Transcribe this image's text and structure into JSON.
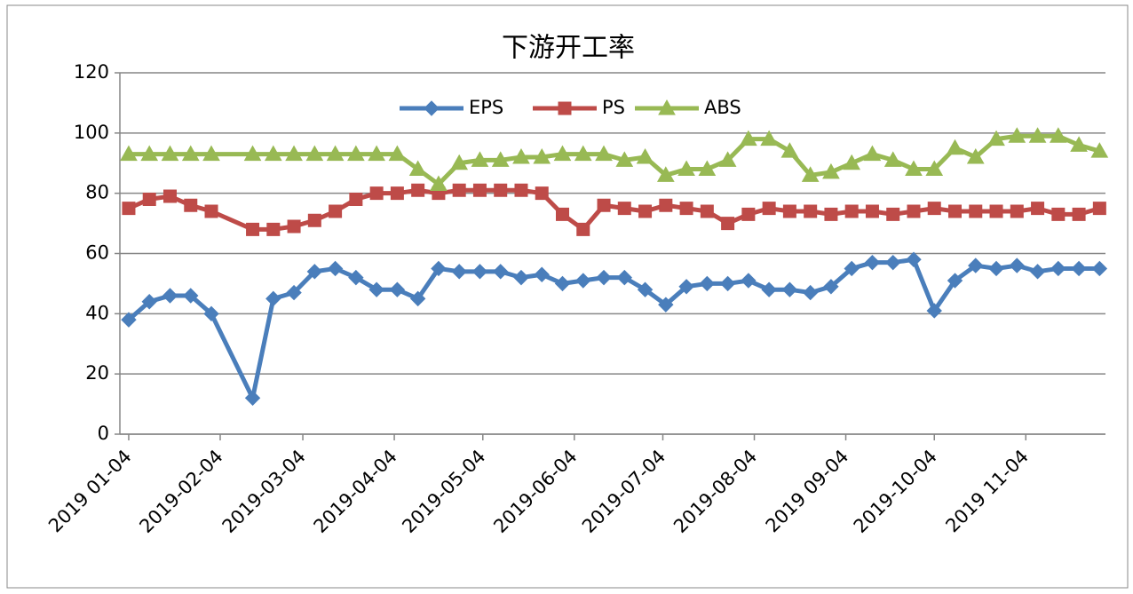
{
  "chart_data": {
    "type": "line",
    "title": "下游开工率",
    "x": [
      "2019-01-04",
      "2019-01-11",
      "2019-01-18",
      "2019-01-25",
      "2019-02-01",
      "2019-02-15",
      "2019-02-22",
      "2019-03-01",
      "2019-03-08",
      "2019-03-15",
      "2019-03-22",
      "2019-03-29",
      "2019-04-05",
      "2019-04-12",
      "2019-04-19",
      "2019-04-26",
      "2019-05-03",
      "2019-05-10",
      "2019-05-17",
      "2019-05-24",
      "2019-05-31",
      "2019-06-07",
      "2019-06-14",
      "2019-06-21",
      "2019-06-28",
      "2019-07-05",
      "2019-07-12",
      "2019-07-19",
      "2019-07-26",
      "2019-08-02",
      "2019-08-09",
      "2019-08-16",
      "2019-08-23",
      "2019-08-30",
      "2019-09-06",
      "2019-09-13",
      "2019-09-20",
      "2019-09-27",
      "2019-10-04",
      "2019-10-11",
      "2019-10-18",
      "2019-10-25",
      "2019-11-01",
      "2019-11-08",
      "2019-11-15",
      "2019-11-22",
      "2019-11-29"
    ],
    "series": [
      {
        "name": "EPS",
        "color": "#4a7ebb",
        "marker": "diamond",
        "values": [
          38,
          44,
          46,
          46,
          40,
          12,
          45,
          47,
          54,
          55,
          52,
          48,
          48,
          45,
          55,
          54,
          54,
          54,
          52,
          53,
          50,
          51,
          52,
          52,
          48,
          43,
          49,
          50,
          50,
          51,
          48,
          48,
          47,
          49,
          55,
          57,
          57,
          58,
          41,
          51,
          56,
          55,
          56,
          54,
          55,
          55,
          55
        ]
      },
      {
        "name": "PS",
        "color": "#be4b48",
        "marker": "square",
        "values": [
          75,
          78,
          79,
          76,
          74,
          68,
          68,
          69,
          71,
          74,
          78,
          80,
          80,
          81,
          80,
          81,
          81,
          81,
          81,
          80,
          73,
          68,
          76,
          75,
          74,
          76,
          75,
          74,
          70,
          73,
          75,
          74,
          74,
          73,
          74,
          74,
          73,
          74,
          75,
          74,
          74,
          74,
          74,
          75,
          73,
          73,
          75
        ]
      },
      {
        "name": "ABS",
        "color": "#98b954",
        "marker": "triangle",
        "values": [
          93,
          93,
          93,
          93,
          93,
          93,
          93,
          93,
          93,
          93,
          93,
          93,
          93,
          88,
          83,
          90,
          91,
          91,
          92,
          92,
          93,
          93,
          93,
          91,
          92,
          86,
          88,
          88,
          91,
          98,
          98,
          94,
          86,
          87,
          90,
          93,
          91,
          88,
          88,
          95,
          92,
          98,
          99,
          99,
          99,
          96,
          94
        ]
      }
    ],
    "xlim": [
      "2019-01-01",
      "2019-12-01"
    ],
    "xticks": [
      {
        "value": "2019-01-04",
        "label": "2019 01-04"
      },
      "2019-02-04",
      "2019-03-04",
      "2019-04-04",
      "2019-05-04",
      "2019-06-04",
      "2019-07-04",
      "2019-08-04",
      {
        "value": "2019-09-04",
        "label": "2019 09-04"
      },
      "2019-10-04",
      {
        "value": "2019-11-04",
        "label": "2019 11-04"
      }
    ],
    "ylim": [
      0,
      120
    ],
    "yticks": [
      0,
      20,
      40,
      60,
      80,
      100,
      120
    ],
    "grid": true,
    "legend": "top"
  }
}
